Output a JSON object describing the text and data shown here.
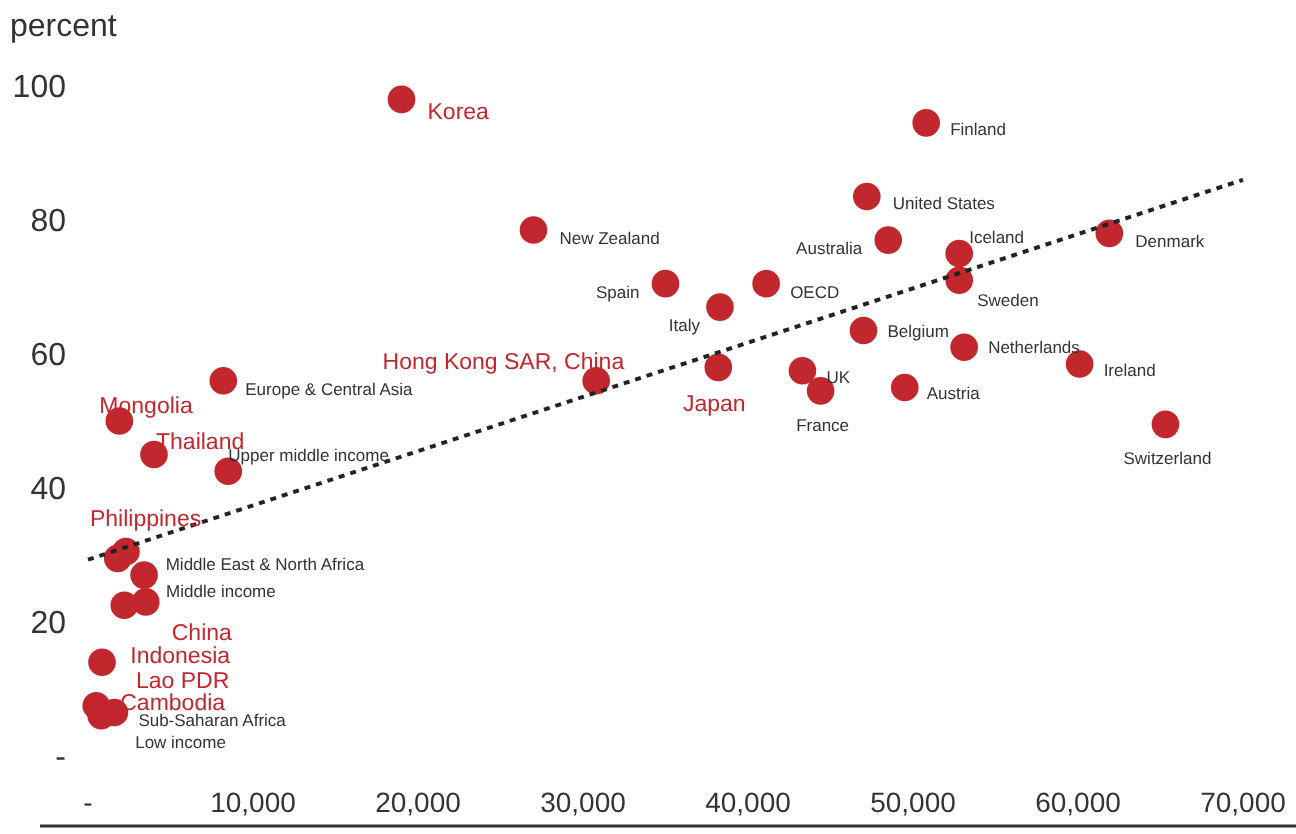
{
  "chart_data": {
    "type": "scatter",
    "ylabel": "percent",
    "xlim": [
      0,
      70000
    ],
    "ylim": [
      0,
      100
    ],
    "xticks": [
      {
        "value": 0,
        "label": "-"
      },
      {
        "value": 10000,
        "label": "10,000"
      },
      {
        "value": 20000,
        "label": "20,000"
      },
      {
        "value": 30000,
        "label": "30,000"
      },
      {
        "value": 40000,
        "label": "40,000"
      },
      {
        "value": 50000,
        "label": "50,000"
      },
      {
        "value": 60000,
        "label": "60,000"
      },
      {
        "value": 70000,
        "label": "70,000"
      }
    ],
    "yticks": [
      {
        "value": 0,
        "label": "-"
      },
      20,
      40,
      60,
      80,
      100
    ],
    "grid": false,
    "series": [
      {
        "marker": "circle",
        "color": "#c1272d",
        "x": [
          19000,
          30800,
          38200,
          1900,
          4000,
          2300,
          3500,
          2200,
          850,
          500
        ],
        "values": [
          98,
          56,
          58,
          50,
          45,
          30.5,
          23,
          22.5,
          14,
          7.5
        ]
      },
      {
        "marker": "circle",
        "color": "#c1272d",
        "x": [
          27000,
          35000,
          38300,
          41100,
          43300,
          44400,
          47000,
          49500,
          47200,
          48500,
          50800,
          52800,
          52800,
          53100,
          61900,
          60100,
          65300,
          8200,
          8500,
          1800,
          3400,
          1600,
          800
        ],
        "values": [
          78.5,
          70.5,
          67,
          70.5,
          57.5,
          54.5,
          63.5,
          55,
          83.5,
          77,
          94.5,
          75,
          71,
          61,
          78,
          58.5,
          49.5,
          56,
          42.5,
          29.5,
          27,
          6.5,
          6
        ]
      },
      {
        "type": "line",
        "color": "#222222",
        "line_style": "dashed",
        "x": [
          0,
          70000
        ],
        "values": [
          29.3,
          86
        ]
      }
    ],
    "annotations": [
      {
        "text": "Korea",
        "x": 19000,
        "y": 98
      },
      {
        "text": "Hong Kong SAR, China",
        "x": 30800,
        "y": 56
      },
      {
        "text": "Japan",
        "x": 38200,
        "y": 58
      },
      {
        "text": "Mongolia",
        "x": 1900,
        "y": 50
      },
      {
        "text": "Thailand",
        "x": 4000,
        "y": 45
      },
      {
        "text": "Philippines",
        "x": 2300,
        "y": 30.5
      },
      {
        "text": "China",
        "x": 3500,
        "y": 23
      },
      {
        "text": "Indonesia",
        "x": 2200,
        "y": 22.5
      },
      {
        "text": "Lao PDR",
        "x": 850,
        "y": 14
      },
      {
        "text": "Cambodia",
        "x": 500,
        "y": 7.5
      },
      {
        "text": "New Zealand",
        "x": 27000,
        "y": 78.5
      },
      {
        "text": "Spain",
        "x": 35000,
        "y": 70.5
      },
      {
        "text": "Italy",
        "x": 38300,
        "y": 67
      },
      {
        "text": "OECD",
        "x": 41100,
        "y": 70.5
      },
      {
        "text": "UK",
        "x": 43300,
        "y": 57.5
      },
      {
        "text": "France",
        "x": 44400,
        "y": 54.5
      },
      {
        "text": "Belgium",
        "x": 47000,
        "y": 63.5
      },
      {
        "text": "Austria",
        "x": 49500,
        "y": 55
      },
      {
        "text": "United States",
        "x": 47200,
        "y": 83.5
      },
      {
        "text": "Australia",
        "x": 48500,
        "y": 77
      },
      {
        "text": "Finland",
        "x": 50800,
        "y": 94.5
      },
      {
        "text": "Iceland",
        "x": 52800,
        "y": 75
      },
      {
        "text": "Sweden",
        "x": 52800,
        "y": 71
      },
      {
        "text": "Netherlands",
        "x": 53100,
        "y": 61
      },
      {
        "text": "Denmark",
        "x": 61900,
        "y": 78
      },
      {
        "text": "Ireland",
        "x": 60100,
        "y": 58.5
      },
      {
        "text": "Switzerland",
        "x": 65300,
        "y": 49.5
      },
      {
        "text": "Europe & Central Asia",
        "x": 8200,
        "y": 56
      },
      {
        "text": "Upper middle income",
        "x": 8500,
        "y": 42.5
      },
      {
        "text": "Middle East & North Africa",
        "x": 1800,
        "y": 29.5
      },
      {
        "text": "Middle income",
        "x": 3400,
        "y": 27
      },
      {
        "text": "Sub-Saharan Africa",
        "x": 1600,
        "y": 6.5
      },
      {
        "text": "Low income",
        "x": 800,
        "y": 6
      }
    ]
  }
}
